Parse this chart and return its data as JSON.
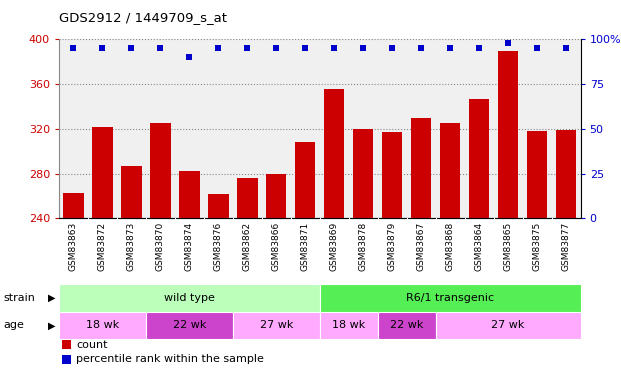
{
  "title": "GDS2912 / 1449709_s_at",
  "samples": [
    "GSM83863",
    "GSM83872",
    "GSM83873",
    "GSM83870",
    "GSM83874",
    "GSM83876",
    "GSM83862",
    "GSM83866",
    "GSM83871",
    "GSM83869",
    "GSM83878",
    "GSM83879",
    "GSM83867",
    "GSM83868",
    "GSM83864",
    "GSM83865",
    "GSM83875",
    "GSM83877"
  ],
  "counts": [
    263,
    322,
    287,
    325,
    282,
    262,
    276,
    280,
    308,
    356,
    320,
    317,
    330,
    325,
    347,
    390,
    318,
    319
  ],
  "percentiles": [
    95,
    95,
    95,
    95,
    90,
    95,
    95,
    95,
    95,
    95,
    95,
    95,
    95,
    95,
    95,
    98,
    95,
    95
  ],
  "ylim_left": [
    240,
    400
  ],
  "ylim_right": [
    0,
    100
  ],
  "yticks_left": [
    240,
    280,
    320,
    360,
    400
  ],
  "yticks_right": [
    0,
    25,
    50,
    75,
    100
  ],
  "bar_color": "#cc0000",
  "dot_color": "#0000cc",
  "bg_color": "#f0f0f0",
  "strain_groups": [
    {
      "label": "wild type",
      "start": 0,
      "end": 9,
      "color": "#bbffbb"
    },
    {
      "label": "R6/1 transgenic",
      "start": 9,
      "end": 18,
      "color": "#55ee55"
    }
  ],
  "age_groups": [
    {
      "label": "18 wk",
      "start": 0,
      "end": 3,
      "color": "#ffaaff"
    },
    {
      "label": "22 wk",
      "start": 3,
      "end": 6,
      "color": "#cc44cc"
    },
    {
      "label": "27 wk",
      "start": 6,
      "end": 9,
      "color": "#ffaaff"
    },
    {
      "label": "18 wk",
      "start": 9,
      "end": 11,
      "color": "#ffaaff"
    },
    {
      "label": "22 wk",
      "start": 11,
      "end": 13,
      "color": "#cc44cc"
    },
    {
      "label": "27 wk",
      "start": 13,
      "end": 18,
      "color": "#ffaaff"
    }
  ],
  "grid_color": "#888888",
  "label_color_left": "#cc0000",
  "label_color_right": "#0000cc",
  "tick_bg_color": "#bbbbbb",
  "ytick_right_labels": [
    "0",
    "25",
    "50",
    "75",
    "100%"
  ]
}
